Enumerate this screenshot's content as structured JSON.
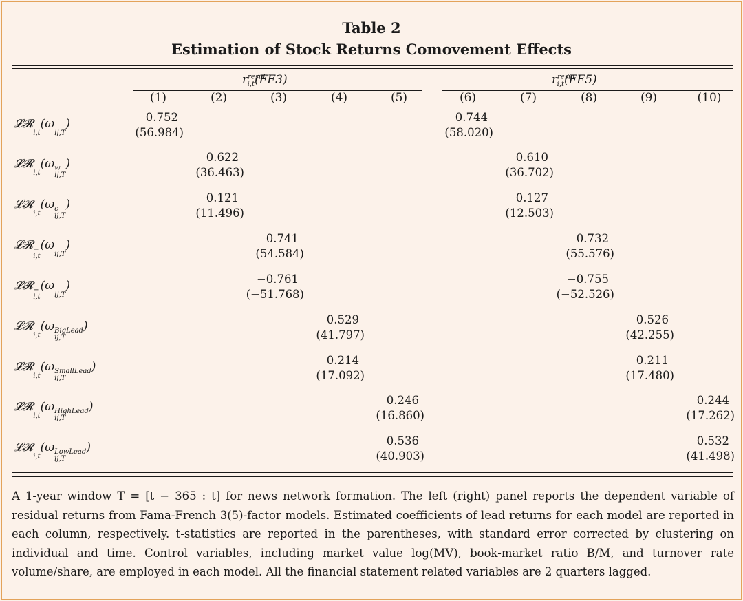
{
  "table": {
    "title": "Table 2",
    "subtitle": "Estimation of Stock Returns Comovement Effects",
    "panels": [
      {
        "var": "r",
        "sup": "resid",
        "sub": "i,t",
        "model": "(FF3)"
      },
      {
        "var": "r",
        "sup": "resid",
        "sub": "i,t",
        "model": "(FF5)"
      }
    ],
    "columns": [
      "(1)",
      "(2)",
      "(3)",
      "(4)",
      "(5)",
      "(6)",
      "(7)",
      "(8)",
      "(9)",
      "(10)"
    ],
    "rows": [
      {
        "label": {
          "base": "𝓛𝓡",
          "sup": "",
          "sub": "i,t",
          "arg": "ω",
          "arg_sup": "",
          "arg_sub": "ij,T"
        },
        "cells": [
          {
            "col": 1,
            "coef": "0.752",
            "tstat": "(56.984)"
          },
          {
            "col": 6,
            "coef": "0.744",
            "tstat": "(58.020)"
          }
        ]
      },
      {
        "label": {
          "base": "𝓛𝓡",
          "sup": "",
          "sub": "i,t",
          "arg": "ω",
          "arg_sup": "w",
          "arg_sub": "ij,T"
        },
        "cells": [
          {
            "col": 2,
            "coef": "0.622",
            "tstat": "(36.463)"
          },
          {
            "col": 7,
            "coef": "0.610",
            "tstat": "(36.702)"
          }
        ]
      },
      {
        "label": {
          "base": "𝓛𝓡",
          "sup": "",
          "sub": "i,t",
          "arg": "ω",
          "arg_sup": "c",
          "arg_sub": "ij,T"
        },
        "cells": [
          {
            "col": 2,
            "coef": "0.121",
            "tstat": "(11.496)"
          },
          {
            "col": 7,
            "coef": "0.127",
            "tstat": "(12.503)"
          }
        ]
      },
      {
        "label": {
          "base": "𝓛𝓡",
          "sup": "+",
          "sub": "i,t",
          "arg": "ω",
          "arg_sup": "",
          "arg_sub": "ij,T"
        },
        "cells": [
          {
            "col": 3,
            "coef": "0.741",
            "tstat": "(54.584)"
          },
          {
            "col": 8,
            "coef": "0.732",
            "tstat": "(55.576)"
          }
        ]
      },
      {
        "label": {
          "base": "𝓛𝓡",
          "sup": "−",
          "sub": "i,t",
          "arg": "ω",
          "arg_sup": "",
          "arg_sub": "ij,T"
        },
        "cells": [
          {
            "col": 3,
            "coef": "−0.761",
            "tstat": "(−51.768)"
          },
          {
            "col": 8,
            "coef": "−0.755",
            "tstat": "(−52.526)"
          }
        ]
      },
      {
        "label": {
          "base": "𝓛𝓡",
          "sup": "",
          "sub": "i,t",
          "arg": "ω",
          "arg_sup": "BigLead",
          "arg_sub": "ij,T"
        },
        "cells": [
          {
            "col": 4,
            "coef": "0.529",
            "tstat": "(41.797)"
          },
          {
            "col": 9,
            "coef": "0.526",
            "tstat": "(42.255)"
          }
        ]
      },
      {
        "label": {
          "base": "𝓛𝓡",
          "sup": "",
          "sub": "i,t",
          "arg": "ω",
          "arg_sup": "SmallLead",
          "arg_sub": "ij,T"
        },
        "cells": [
          {
            "col": 4,
            "coef": "0.214",
            "tstat": "(17.092)"
          },
          {
            "col": 9,
            "coef": "0.211",
            "tstat": "(17.480)"
          }
        ]
      },
      {
        "label": {
          "base": "𝓛𝓡",
          "sup": "",
          "sub": "i,t",
          "arg": "ω",
          "arg_sup": "HighLead",
          "arg_sub": "ij,T"
        },
        "cells": [
          {
            "col": 5,
            "coef": "0.246",
            "tstat": "(16.860)"
          },
          {
            "col": 10,
            "coef": "0.244",
            "tstat": "(17.262)"
          }
        ]
      },
      {
        "label": {
          "base": "𝓛𝓡",
          "sup": "",
          "sub": "i,t",
          "arg": "ω",
          "arg_sup": "LowLead",
          "arg_sub": "ij,T"
        },
        "cells": [
          {
            "col": 5,
            "coef": "0.536",
            "tstat": "(40.903)"
          },
          {
            "col": 10,
            "coef": "0.532",
            "tstat": "(41.498)"
          }
        ]
      }
    ],
    "note": "A 1-year window T = [t − 365 : t] for news network formation. The left (right) panel reports the dependent variable of residual returns from Fama-French 3(5)-factor models. Estimated coefficients of lead returns for each model are reported in each column, respectively. t-statistics are reported in the parentheses, with standard error corrected by clustering on individual and time. Control variables, including market value log(MV), book-market ratio B/M, and turnover rate volume/share, are employed in each model. All the financial statement related variables are 2 quarters lagged."
  }
}
